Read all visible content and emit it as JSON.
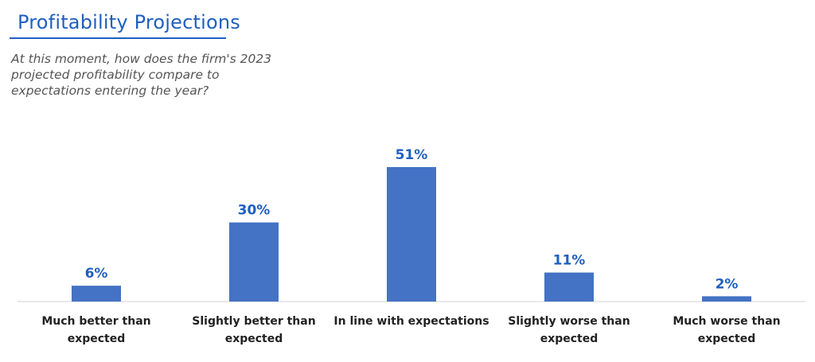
{
  "header": {
    "title": "Profitability Projections",
    "subtitle": "At this moment, how does the firm's 2023 projected profitability compare to expectations entering the year?"
  },
  "colors": {
    "accent": "#1f5fbf",
    "bar": "#4472c4",
    "value_label": "#1f5fbf"
  },
  "chart_data": {
    "type": "bar",
    "title": "",
    "xlabel": "",
    "ylabel": "",
    "categories": [
      [
        "Much better than",
        "expected"
      ],
      [
        "Slightly better than",
        "expected"
      ],
      [
        "In line with expectations"
      ],
      [
        "Slightly worse than",
        "expected"
      ],
      [
        "Much worse than",
        "expected"
      ]
    ],
    "values": [
      6,
      30,
      51,
      11,
      2
    ],
    "data_labels": [
      "6%",
      "30%",
      "51%",
      "11%",
      "2%"
    ],
    "ylim": [
      0,
      60
    ],
    "grid": false,
    "legend": "none"
  }
}
